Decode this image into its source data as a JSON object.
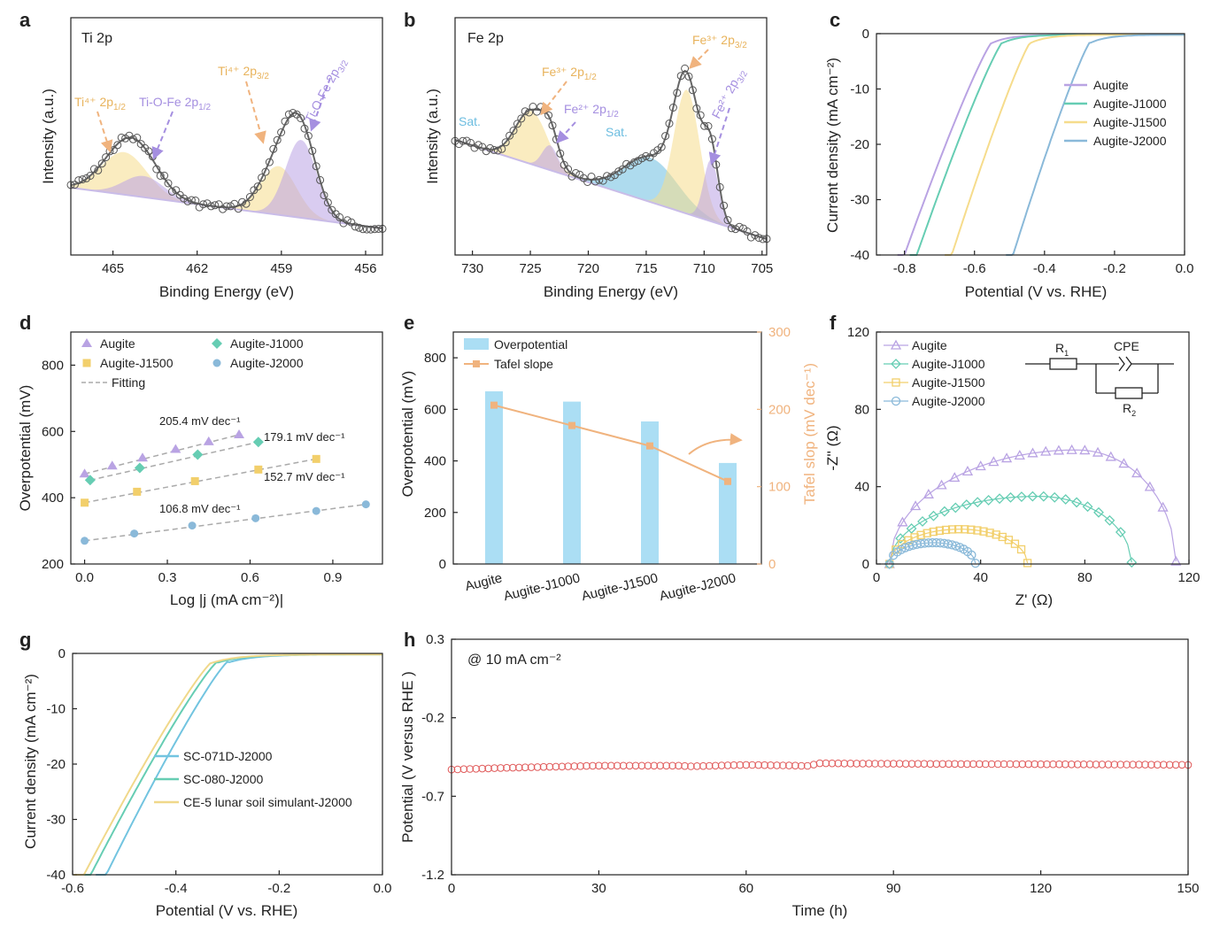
{
  "figure": {
    "description_free_note": "",
    "colors": {
      "augite": "#b9a3e3",
      "j1000": "#66cdb3",
      "j1500": "#f6dc8c",
      "j2000": "#8ab9d9",
      "orange": "#f0b37e",
      "purple_dash": "#a58fe0",
      "blue_fill": "#8fd3f0",
      "sat": "#6cbde0",
      "red": "#e05a5a",
      "markers": "#555555"
    }
  },
  "chart_data": [
    {
      "id": "a",
      "type": "line",
      "panel_label": "a",
      "title": "Ti 2p",
      "xlabel": "Binding Energy (eV)",
      "ylabel": "Intensity (a.u.)",
      "xlim": [
        466.5,
        455.4
      ],
      "xticks": [
        465,
        462,
        459,
        456
      ],
      "tick_labels": [
        "465",
        "462",
        "459",
        "456"
      ],
      "annotations": [
        {
          "text": "Ti⁴⁺ 2p",
          "sub": "1/2"
        },
        {
          "text": "Ti-O-Fe 2p",
          "sub": "1/2"
        },
        {
          "text": "Ti⁴⁺ 2p",
          "sub": "3/2"
        },
        {
          "text": "Ti-O-Fe 2p",
          "sub": "3/2"
        }
      ],
      "peaks": [
        {
          "name": "Ti4+ 2p1/2",
          "center": 464.6,
          "fwhm": 1.9
        },
        {
          "name": "Ti-O-Fe 2p1/2",
          "center": 463.9,
          "fwhm": 1.7
        },
        {
          "name": "Ti4+ 2p3/2",
          "center": 459.1,
          "fwhm": 1.5
        },
        {
          "name": "Ti-O-Fe 2p3/2",
          "center": 458.3,
          "fwhm": 1.3
        }
      ]
    },
    {
      "id": "b",
      "type": "line",
      "panel_label": "b",
      "title": "Fe 2p",
      "xlabel": "Binding Energy (eV)",
      "ylabel": "Intensity (a.u.)",
      "xlim": [
        731.5,
        704.6
      ],
      "xticks": [
        730,
        725,
        720,
        715,
        710,
        705
      ],
      "tick_labels": [
        "730",
        "725",
        "720",
        "715",
        "710",
        "705"
      ],
      "annotations": [
        {
          "text": "Sat."
        },
        {
          "text": "Fe³⁺ 2p",
          "sub": "1/2"
        },
        {
          "text": "Fe²⁺ 2p",
          "sub": "1/2"
        },
        {
          "text": "Sat."
        },
        {
          "text": "Fe³⁺ 2p",
          "sub": "3/2"
        },
        {
          "text": "Fe²⁺ 2p",
          "sub": "3/2"
        }
      ],
      "peaks": [
        {
          "name": "Fe3+ 2p1/2",
          "center": 724.9,
          "fwhm": 3.2
        },
        {
          "name": "Fe2+ 2p1/2",
          "center": 723.3,
          "fwhm": 1.6
        },
        {
          "name": "Sat.",
          "center": 714.6,
          "fwhm": 5.4
        },
        {
          "name": "Fe3+ 2p3/2",
          "center": 711.5,
          "fwhm": 2.6
        },
        {
          "name": "Fe2+ 2p3/2",
          "center": 709.4,
          "fwhm": 1.5
        }
      ]
    },
    {
      "id": "c",
      "type": "line",
      "panel_label": "c",
      "xlabel": "Potential (V vs. RHE)",
      "ylabel": "Current density (mA cm⁻²)",
      "xlim": [
        -0.88,
        0.0
      ],
      "ylim": [
        -40,
        0
      ],
      "xticks": [
        -0.8,
        -0.6,
        -0.4,
        -0.2,
        0.0
      ],
      "x_tick_labels": [
        "-0.8",
        "-0.6",
        "-0.4",
        "-0.2",
        "0.0"
      ],
      "yticks": [
        0,
        -10,
        -20,
        -30,
        -40
      ],
      "y_tick_labels": [
        "0",
        "-10",
        "-20",
        "-30",
        "-40"
      ],
      "legend": [
        "Augite",
        "Augite-J1000",
        "Augite-J1500",
        "Augite-J2000"
      ],
      "series": [
        {
          "name": "Augite",
          "onset": -0.55,
          "at_minus40": -0.8
        },
        {
          "name": "Augite-J1000",
          "onset": -0.52,
          "at_minus40": -0.765
        },
        {
          "name": "Augite-J1500",
          "onset": -0.44,
          "at_minus40": -0.665
        },
        {
          "name": "Augite-J2000",
          "onset": -0.27,
          "at_minus40": -0.49
        }
      ]
    },
    {
      "id": "d",
      "type": "scatter",
      "panel_label": "d",
      "xlabel": "Log |j (mA cm⁻²)|",
      "ylabel": "Overpotential (mV)",
      "xlim": [
        -0.05,
        1.08
      ],
      "ylim": [
        200,
        900
      ],
      "xticks": [
        0.0,
        0.3,
        0.6,
        0.9
      ],
      "x_tick_labels": [
        "0.0",
        "0.3",
        "0.6",
        "0.9"
      ],
      "yticks": [
        200,
        400,
        600,
        800
      ],
      "y_tick_labels": [
        "200",
        "400",
        "600",
        "800"
      ],
      "legend": [
        "Augite",
        "Augite-J1000",
        "Augite-J1500",
        "Augite-J2000",
        "Fitting"
      ],
      "slope_labels": [
        "205.4 mV dec⁻¹",
        "179.1 mV dec⁻¹",
        "152.7 mV dec⁻¹",
        "106.8 mV dec⁻¹"
      ],
      "series": [
        {
          "name": "Augite",
          "x": [
            0.0,
            0.1,
            0.21,
            0.33,
            0.45,
            0.56
          ],
          "y": [
            472,
            496,
            520,
            546,
            569,
            590
          ]
        },
        {
          "name": "Augite-J1000",
          "x": [
            0.02,
            0.2,
            0.41,
            0.63
          ],
          "y": [
            453,
            490,
            530,
            568
          ]
        },
        {
          "name": "Augite-J1500",
          "x": [
            0.0,
            0.19,
            0.4,
            0.63,
            0.84
          ],
          "y": [
            385,
            418,
            450,
            485,
            517
          ]
        },
        {
          "name": "Augite-J2000",
          "x": [
            0.0,
            0.18,
            0.39,
            0.62,
            0.84,
            1.02
          ],
          "y": [
            270,
            292,
            316,
            338,
            360,
            380
          ]
        }
      ]
    },
    {
      "id": "e",
      "type": "bar",
      "panel_label": "e",
      "ylabel": "Overpotential (mV)",
      "y2label": "Tafel slop (mV dec⁻¹)",
      "categories": [
        "Augite",
        "Augite-J1000",
        "Augite-J1500",
        "Augite-J2000"
      ],
      "ylim": [
        0,
        900
      ],
      "y2lim": [
        0,
        300
      ],
      "yticks": [
        0,
        200,
        400,
        600,
        800
      ],
      "y_tick_labels": [
        "0",
        "200",
        "400",
        "600",
        "800"
      ],
      "y2ticks": [
        0,
        100,
        200,
        300
      ],
      "y2_tick_labels": [
        "0",
        "100",
        "200",
        "300"
      ],
      "legend": [
        "Overpotential",
        "Tafel slope"
      ],
      "series": [
        {
          "name": "Overpotential",
          "values": [
            670,
            630,
            553,
            392
          ]
        },
        {
          "name": "Tafel slope",
          "values": [
            205.4,
            179.1,
            152.7,
            106.8
          ]
        }
      ]
    },
    {
      "id": "f",
      "type": "scatter",
      "panel_label": "f",
      "xlabel": "Z' (Ω)",
      "ylabel": "-Z'' (Ω)",
      "xlim": [
        0,
        120
      ],
      "ylim": [
        0,
        120
      ],
      "xticks": [
        0,
        40,
        80,
        120
      ],
      "x_tick_labels": [
        "0",
        "40",
        "80",
        "120"
      ],
      "yticks": [
        0,
        40,
        80,
        120
      ],
      "y_tick_labels": [
        "0",
        "40",
        "80",
        "120"
      ],
      "legend": [
        "Augite",
        "Augite-J1000",
        "Augite-J1500",
        "Augite-J2000"
      ],
      "circuit_labels": [
        "R",
        "1",
        "CPE",
        "R",
        "2"
      ],
      "series": [
        {
          "name": "Augite",
          "start": 5,
          "center": 77,
          "peak": 59,
          "end": 115
        },
        {
          "name": "Augite-J1000",
          "start": 5,
          "center": 62,
          "peak": 35,
          "end": 98
        },
        {
          "name": "Augite-J1500",
          "start": 5,
          "center": 32,
          "peak": 18,
          "end": 58
        },
        {
          "name": "Augite-J2000",
          "start": 5,
          "center": 22,
          "peak": 11,
          "end": 38
        }
      ]
    },
    {
      "id": "g",
      "type": "line",
      "panel_label": "g",
      "xlabel": "Potential (V vs. RHE)",
      "ylabel": "Current density (mA cm⁻²)",
      "xlim": [
        -0.6,
        0.0
      ],
      "ylim": [
        -40,
        0
      ],
      "xticks": [
        -0.6,
        -0.4,
        -0.2,
        0.0
      ],
      "x_tick_labels": [
        "-0.6",
        "-0.4",
        "-0.2",
        "0.0"
      ],
      "yticks": [
        0,
        -10,
        -20,
        -30,
        -40
      ],
      "y_tick_labels": [
        "0",
        "-10",
        "-20",
        "-30",
        "-40"
      ],
      "legend": [
        "SC-071D-J2000",
        "SC-080-J2000",
        "CE-5 lunar soil simulant-J2000"
      ],
      "series": [
        {
          "name": "SC-071D-J2000",
          "onset": -0.3,
          "at_minus40": -0.535
        },
        {
          "name": "SC-080-J2000",
          "onset": -0.32,
          "at_minus40": -0.565
        },
        {
          "name": "CE-5 lunar soil simulant-J2000",
          "onset": -0.33,
          "at_minus40": -0.578
        }
      ]
    },
    {
      "id": "h",
      "type": "line",
      "panel_label": "h",
      "xlabel": "Time (h)",
      "ylabel": "Potential (V versus RHE )",
      "annotation": "@ 10 mA cm⁻²",
      "xlim": [
        0,
        150
      ],
      "ylim": [
        -1.2,
        0.3
      ],
      "xticks": [
        0,
        30,
        60,
        90,
        120,
        150
      ],
      "x_tick_labels": [
        "0",
        "30",
        "60",
        "90",
        "120",
        "150"
      ],
      "yticks": [
        0.3,
        -0.2,
        -0.7,
        -1.2
      ],
      "y_tick_labels": [
        "0.3",
        "-0.2",
        "-0.7",
        "-1.2"
      ],
      "series": [
        {
          "name": "Potential",
          "x": [
            0,
            10,
            30,
            47,
            48,
            60,
            71,
            72,
            75,
            90,
            110,
            130,
            150
          ],
          "y": [
            -0.53,
            -0.52,
            -0.505,
            -0.505,
            -0.51,
            -0.5,
            -0.505,
            -0.51,
            -0.49,
            -0.493,
            -0.495,
            -0.497,
            -0.5
          ]
        }
      ]
    }
  ]
}
